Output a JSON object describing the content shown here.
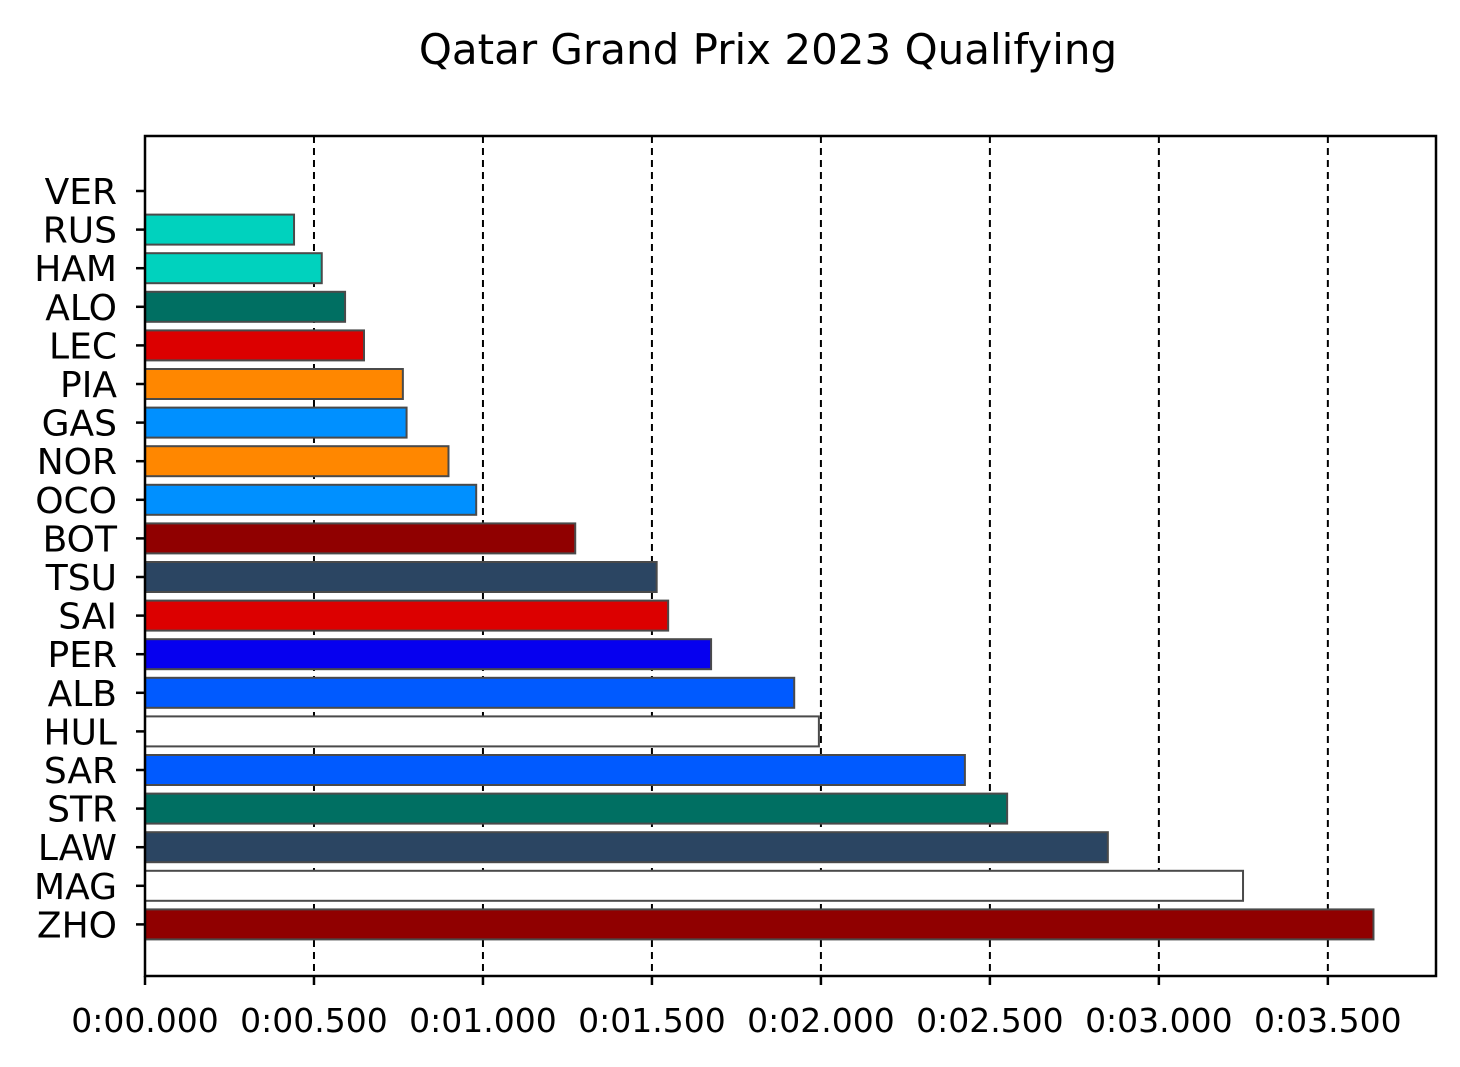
{
  "chart_data": {
    "type": "bar",
    "orientation": "horizontal",
    "title": "Qatar Grand Prix 2023 Qualifying",
    "xlabel": "",
    "ylabel": "",
    "xlim": [
      0,
      3.82
    ],
    "xticks": [
      0,
      0.5,
      1.0,
      1.5,
      2.0,
      2.5,
      3.0,
      3.5
    ],
    "xtick_labels": [
      "0:00.000",
      "0:00.500",
      "0:01.000",
      "0:01.500",
      "0:02.000",
      "0:02.500",
      "0:03.000",
      "0:03.500"
    ],
    "grid": "x-dashed",
    "categories": [
      "VER",
      "RUS",
      "HAM",
      "ALO",
      "LEC",
      "PIA",
      "GAS",
      "NOR",
      "OCO",
      "BOT",
      "TSU",
      "SAI",
      "PER",
      "ALB",
      "HUL",
      "SAR",
      "STR",
      "LAW",
      "MAG",
      "ZHO"
    ],
    "values": [
      0.0,
      0.441,
      0.523,
      0.592,
      0.648,
      0.763,
      0.774,
      0.898,
      0.98,
      1.273,
      1.514,
      1.548,
      1.675,
      1.921,
      1.994,
      2.426,
      2.551,
      2.849,
      3.249,
      3.635
    ],
    "colors": [
      "#1e41ff",
      "#00d2be",
      "#00d2be",
      "#006f62",
      "#dc0000",
      "#ff8700",
      "#0090ff",
      "#ff8700",
      "#0090ff",
      "#900000",
      "#2b4562",
      "#dc0000",
      "#0600ef",
      "#005aff",
      "#ffffff",
      "#005aff",
      "#006f62",
      "#2b4562",
      "#ffffff",
      "#900000"
    ]
  }
}
